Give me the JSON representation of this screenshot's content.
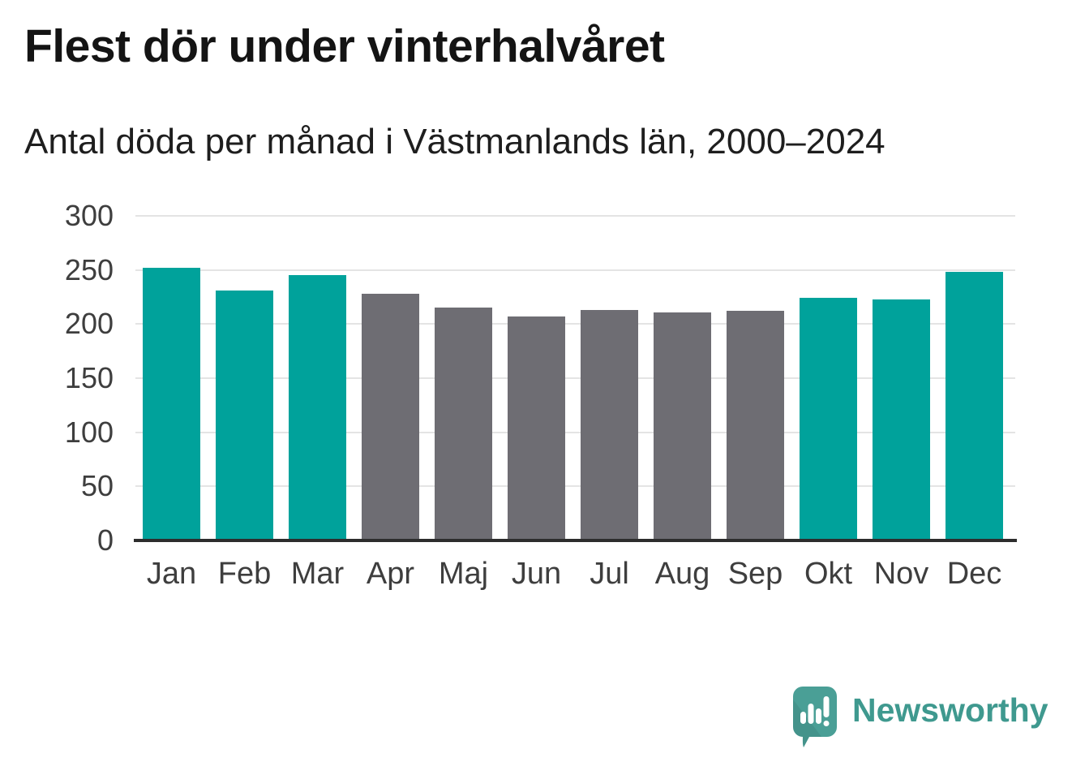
{
  "chart_data": {
    "type": "bar",
    "title": "Flest dör under vinterhalvåret",
    "subtitle": "Antal döda per månad i Västmanlands län, 2000–2024",
    "categories": [
      "Jan",
      "Feb",
      "Mar",
      "Apr",
      "Maj",
      "Jun",
      "Jul",
      "Aug",
      "Sep",
      "Okt",
      "Nov",
      "Dec"
    ],
    "values": [
      252,
      231,
      245,
      228,
      215,
      207,
      213,
      211,
      212,
      224,
      223,
      248
    ],
    "bar_seasons": [
      "winter",
      "winter",
      "winter",
      "summer",
      "summer",
      "summer",
      "summer",
      "summer",
      "summer",
      "winter",
      "winter",
      "winter"
    ],
    "palette": {
      "winter": "#00a29b",
      "summer": "#6e6d73"
    },
    "xlabel": "",
    "ylabel": "",
    "ylim": [
      0,
      300
    ],
    "yticks": [
      0,
      50,
      100,
      150,
      200,
      250,
      300
    ],
    "grid": true,
    "legend": "none"
  },
  "footer": {
    "brand": "Newsworthy"
  },
  "colors": {
    "teal_bar": "#00a29b",
    "gray_bar": "#6e6d73",
    "gridline": "#e4e4e4",
    "axis_line": "#2d2d2d",
    "tick_text": "#3e3e3e",
    "title_text": "#141414",
    "brand_text": "#3f998f",
    "logo_bubble": "#4a9f96"
  }
}
